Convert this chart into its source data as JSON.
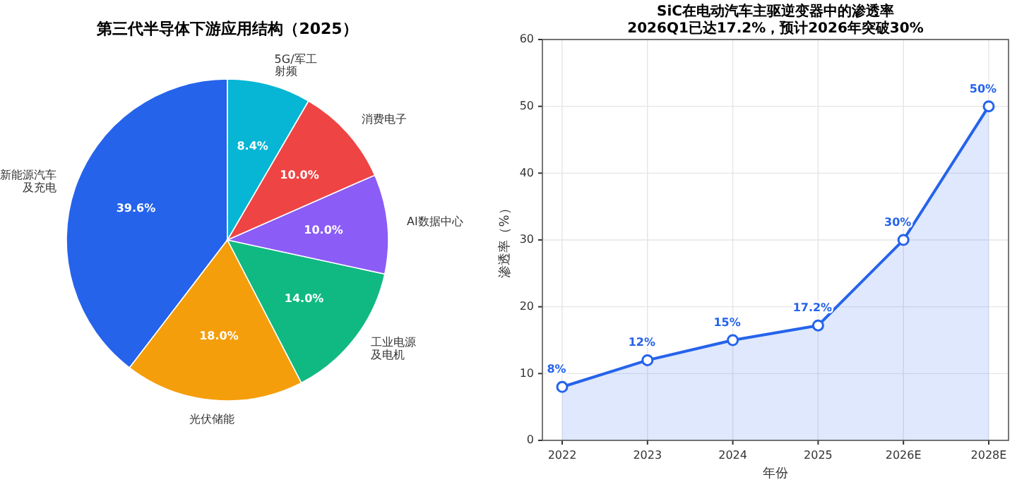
{
  "chart_data": [
    {
      "type": "pie",
      "title": "第三代半导体下游应用结构（2025）",
      "categories": [
        "新能源汽车及充电",
        "光伏储能",
        "工业电源及电机",
        "AI数据中心",
        "消费电子",
        "5G/军工射频"
      ],
      "values": [
        39.6,
        18.0,
        14.0,
        10.0,
        10.0,
        8.4
      ],
      "value_labels": [
        "39.6%",
        "18.0%",
        "14.0%",
        "10.0%",
        "10.0%",
        "8.4%"
      ],
      "colors": [
        "#2563eb",
        "#f59e0b",
        "#10b981",
        "#8b5cf6",
        "#ef4444",
        "#06b6d4"
      ]
    },
    {
      "type": "area",
      "title": "SiC在电动汽车主驱逆变器中的渗透率",
      "subtitle": "2026Q1已达17.2%，预计2026年突破30%",
      "xlabel": "年份",
      "ylabel": "渗透率（%）",
      "categories": [
        "2022",
        "2023",
        "2024",
        "2025",
        "2026E",
        "2028E"
      ],
      "series": [
        {
          "color": "#2563eb",
          "values": [
            8,
            12,
            15,
            17.2,
            30,
            50
          ],
          "value_labels": [
            "8%",
            "12%",
            "15%",
            "17.2%",
            "30%",
            "50%"
          ]
        }
      ],
      "ylim": [
        0,
        60
      ],
      "yticks": [
        0,
        10,
        20,
        30,
        40,
        50,
        60
      ],
      "grid": true,
      "marker": "circle",
      "line_style": "solid"
    }
  ]
}
